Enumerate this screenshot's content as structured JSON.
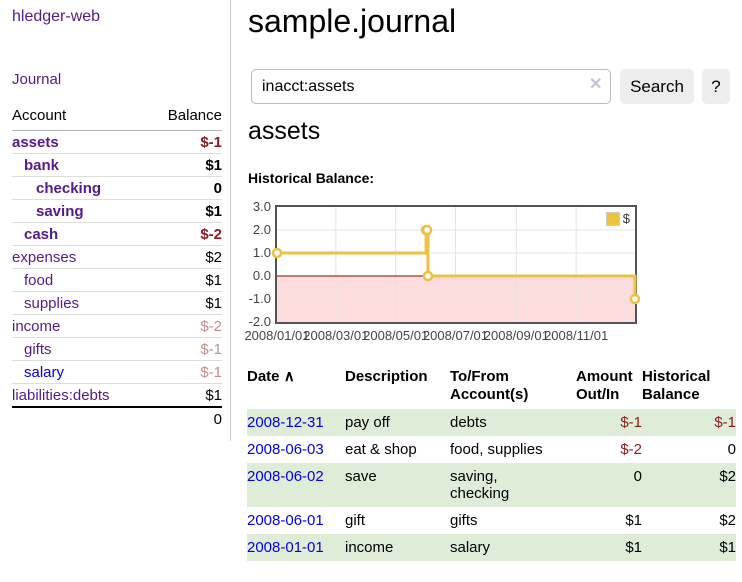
{
  "app": {
    "brand": "hledger-web",
    "nav_journal": "Journal"
  },
  "sidebar": {
    "accounts_header": {
      "account": "Account",
      "balance": "Balance"
    },
    "accounts": [
      {
        "label": "assets",
        "balance": "$-1",
        "row_class": "bold ind0",
        "bal_class": "neg-strong"
      },
      {
        "label": "bank",
        "balance": "$1",
        "row_class": "bold ind1",
        "bal_class": ""
      },
      {
        "label": "checking",
        "balance": "0",
        "row_class": "bold ind2",
        "bal_class": ""
      },
      {
        "label": "saving",
        "balance": "$1",
        "row_class": "bold ind2",
        "bal_class": ""
      },
      {
        "label": "cash",
        "balance": "$-2",
        "row_class": "bold ind1",
        "bal_class": "neg-strong"
      },
      {
        "label": "expenses",
        "balance": "$2",
        "row_class": "ind0",
        "bal_class": ""
      },
      {
        "label": "food",
        "balance": "$1",
        "row_class": "ind1",
        "bal_class": ""
      },
      {
        "label": "supplies",
        "balance": "$1",
        "row_class": "ind1",
        "bal_class": ""
      },
      {
        "label": "income",
        "balance": "$-2",
        "row_class": "ind0",
        "bal_class": "neg-light"
      },
      {
        "label": "gifts",
        "balance": "$-1",
        "row_class": "ind1",
        "bal_class": "neg-light"
      },
      {
        "label": "salary",
        "balance": "$-1",
        "row_class": "ind1 blue",
        "bal_class": "neg-light"
      },
      {
        "label": "liabilities:debts",
        "balance": "$1",
        "row_class": "ind0",
        "bal_class": ""
      }
    ],
    "total": "0"
  },
  "header": {
    "title": "sample.journal"
  },
  "search": {
    "value": "inacct:assets",
    "clear_icon": "✕",
    "button": "Search",
    "help": "?"
  },
  "account_page": {
    "title": "assets",
    "chart_label": "Historical Balance:"
  },
  "chart_data": {
    "type": "line",
    "step": true,
    "title": "Historical Balance",
    "series": [
      {
        "name": "$",
        "color": "#EDC240",
        "points": [
          [
            "2008-01-01",
            1
          ],
          [
            "2008-06-01",
            2
          ],
          [
            "2008-06-02",
            2
          ],
          [
            "2008-06-03",
            0
          ],
          [
            "2008-12-31",
            -1
          ]
        ]
      }
    ],
    "xlim": [
      "2008-01-01",
      "2008-12-31"
    ],
    "ylim": [
      -2,
      3
    ],
    "yticks": [
      "3.0",
      "2.0",
      "1.0",
      "0.0",
      "-1.0",
      "-2.0"
    ],
    "xticks": [
      "2008/01/01",
      "2008/03/01",
      "2008/05/01",
      "2008/07/01",
      "2008/09/01",
      "2008/11/01"
    ],
    "legend_position": "top-right",
    "grid": true,
    "negative_region_color": "#fcdcdc",
    "zero_line_color": "#8b0000"
  },
  "register": {
    "header": {
      "date": "Date",
      "description": "Description",
      "accounts": "To/From Account(s)",
      "amount": "Amount Out/In",
      "balance": "Historical Balance"
    },
    "sort_indicator": "∧",
    "rows": [
      {
        "date": "2008-12-31",
        "description": "pay off",
        "accounts": "debts",
        "amount": "$-1",
        "amount_class": "neg",
        "balance": "$-1",
        "balance_class": "neg"
      },
      {
        "date": "2008-06-03",
        "description": "eat & shop",
        "accounts": "food, supplies",
        "amount": "$-2",
        "amount_class": "neg",
        "balance": "0",
        "balance_class": ""
      },
      {
        "date": "2008-06-02",
        "description": "save",
        "accounts": "saving, checking",
        "amount": "0",
        "amount_class": "",
        "balance": "$2",
        "balance_class": ""
      },
      {
        "date": "2008-06-01",
        "description": "gift",
        "accounts": "gifts",
        "amount": "$1",
        "amount_class": "",
        "balance": "$2",
        "balance_class": ""
      },
      {
        "date": "2008-01-01",
        "description": "income",
        "accounts": "salary",
        "amount": "$1",
        "amount_class": "",
        "balance": "$1",
        "balance_class": ""
      }
    ]
  }
}
